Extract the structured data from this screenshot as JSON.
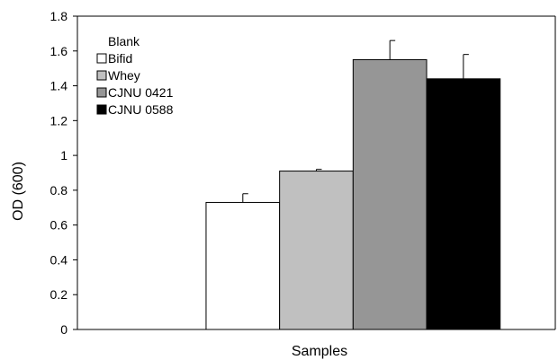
{
  "chart_data": {
    "type": "bar",
    "title": "",
    "xlabel": "Samples",
    "ylabel": "OD (600)",
    "ylim": [
      0,
      1.8
    ],
    "y_ticks": [
      "0",
      "0.2",
      "0.4",
      "0.6",
      "0.8",
      "1",
      "1.2",
      "1.4",
      "1.6",
      "1.8"
    ],
    "grid": false,
    "legend_position": "top-left",
    "series": [
      {
        "name": "Blank",
        "value": 0,
        "error": 0,
        "color": "#ffffff",
        "swatch": false
      },
      {
        "name": "Bifid",
        "value": 0.73,
        "error": 0.05,
        "color": "#ffffff",
        "swatch": true
      },
      {
        "name": "Whey",
        "value": 0.91,
        "error": 0.01,
        "color": "#c0c0c0",
        "swatch": true
      },
      {
        "name": "CJNU 0421",
        "value": 1.55,
        "error": 0.11,
        "color": "#969696",
        "swatch": true
      },
      {
        "name": "CJNU 0588",
        "value": 1.44,
        "error": 0.14,
        "color": "#000000",
        "swatch": true
      }
    ]
  }
}
